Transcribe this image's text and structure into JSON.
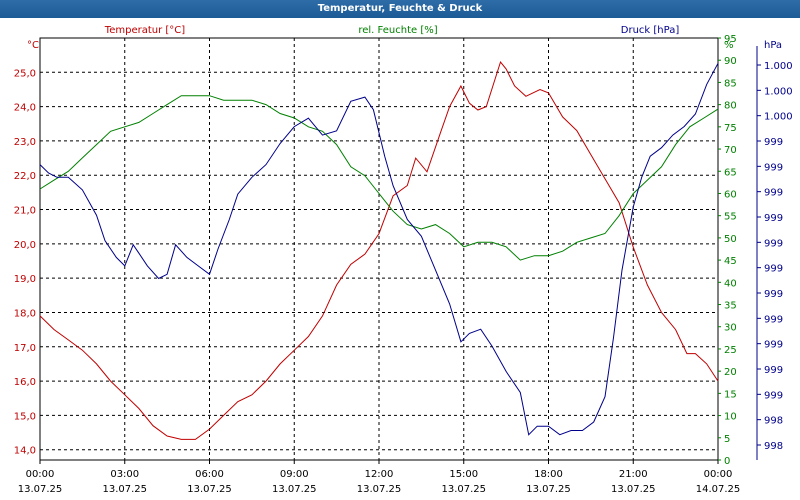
{
  "window": {
    "title": "Temperatur, Feuchte & Druck"
  },
  "colors": {
    "temperature": "#c00000",
    "humidity": "#008000",
    "pressure": "#00008b",
    "grid": "#000000"
  },
  "chart_data": {
    "type": "line",
    "title": "Temperatur, Feuchte & Druck",
    "grid": true,
    "x_ticks": [
      {
        "time": "00:00",
        "date": "13.07.25"
      },
      {
        "time": "03:00",
        "date": "13.07.25"
      },
      {
        "time": "06:00",
        "date": "13.07.25"
      },
      {
        "time": "09:00",
        "date": "13.07.25"
      },
      {
        "time": "12:00",
        "date": "13.07.25"
      },
      {
        "time": "15:00",
        "date": "13.07.25"
      },
      {
        "time": "18:00",
        "date": "13.07.25"
      },
      {
        "time": "21:00",
        "date": "13.07.25"
      },
      {
        "time": "00:00",
        "date": "14.07.25"
      }
    ],
    "axes": {
      "temperature": {
        "label": "Temperatur [°C]",
        "unit": "°C",
        "ylim": [
          13.7,
          26.0
        ],
        "ticks": [
          "25,0",
          "24,0",
          "23,0",
          "22,0",
          "21,0",
          "20,0",
          "19,0",
          "18,0",
          "17,0",
          "16,0",
          "15,0",
          "14,0"
        ]
      },
      "humidity": {
        "label": "rel. Feuchte [%]",
        "unit": "%",
        "ylim": [
          0,
          95
        ],
        "ticks": [
          "95",
          "90",
          "85",
          "80",
          "75",
          "70",
          "65",
          "60",
          "55",
          "50",
          "45",
          "40",
          "35",
          "30",
          "25",
          "20",
          "15",
          "10",
          "5",
          "0"
        ]
      },
      "pressure": {
        "label": "Druck [hPa]",
        "unit": "hPa",
        "ticks": [
          "1.000",
          "1.000",
          "1.000",
          "999",
          "999",
          "999",
          "999",
          "999",
          "999",
          "999",
          "999",
          "999",
          "999",
          "999",
          "998",
          "998"
        ]
      }
    },
    "series": [
      {
        "name": "Temperatur [°C]",
        "axis": "temperature",
        "points": [
          [
            0.0,
            17.9
          ],
          [
            0.5,
            17.5
          ],
          [
            1.0,
            17.2
          ],
          [
            1.5,
            16.9
          ],
          [
            2.0,
            16.5
          ],
          [
            2.5,
            16.0
          ],
          [
            3.0,
            15.6
          ],
          [
            3.5,
            15.2
          ],
          [
            4.0,
            14.7
          ],
          [
            4.5,
            14.4
          ],
          [
            5.0,
            14.3
          ],
          [
            5.5,
            14.3
          ],
          [
            6.0,
            14.6
          ],
          [
            6.5,
            15.0
          ],
          [
            7.0,
            15.4
          ],
          [
            7.5,
            15.6
          ],
          [
            8.0,
            16.0
          ],
          [
            8.5,
            16.5
          ],
          [
            9.0,
            16.9
          ],
          [
            9.5,
            17.3
          ],
          [
            10.0,
            17.9
          ],
          [
            10.5,
            18.8
          ],
          [
            11.0,
            19.4
          ],
          [
            11.5,
            19.7
          ],
          [
            12.0,
            20.3
          ],
          [
            12.5,
            21.4
          ],
          [
            13.0,
            21.7
          ],
          [
            13.3,
            22.5
          ],
          [
            13.7,
            22.1
          ],
          [
            14.2,
            23.3
          ],
          [
            14.5,
            24.0
          ],
          [
            14.9,
            24.6
          ],
          [
            15.2,
            24.1
          ],
          [
            15.5,
            23.9
          ],
          [
            15.8,
            24.0
          ],
          [
            16.3,
            25.3
          ],
          [
            16.5,
            25.1
          ],
          [
            16.8,
            24.6
          ],
          [
            17.2,
            24.3
          ],
          [
            17.7,
            24.5
          ],
          [
            18.0,
            24.4
          ],
          [
            18.5,
            23.7
          ],
          [
            19.0,
            23.3
          ],
          [
            19.5,
            22.6
          ],
          [
            20.0,
            21.9
          ],
          [
            20.5,
            21.2
          ],
          [
            21.0,
            19.9
          ],
          [
            21.5,
            18.8
          ],
          [
            22.0,
            18.0
          ],
          [
            22.5,
            17.5
          ],
          [
            22.9,
            16.8
          ],
          [
            23.2,
            16.8
          ],
          [
            23.6,
            16.5
          ],
          [
            24.0,
            16.0
          ]
        ]
      },
      {
        "name": "rel. Feuchte [%]",
        "axis": "humidity",
        "points": [
          [
            0.0,
            61
          ],
          [
            0.5,
            63
          ],
          [
            1.0,
            65
          ],
          [
            1.5,
            68
          ],
          [
            2.0,
            71
          ],
          [
            2.5,
            74
          ],
          [
            3.0,
            75
          ],
          [
            3.5,
            76
          ],
          [
            4.0,
            78
          ],
          [
            4.5,
            80
          ],
          [
            5.0,
            82
          ],
          [
            5.5,
            82
          ],
          [
            6.0,
            82
          ],
          [
            6.5,
            81
          ],
          [
            7.0,
            81
          ],
          [
            7.5,
            81
          ],
          [
            8.0,
            80
          ],
          [
            8.5,
            78
          ],
          [
            9.0,
            77
          ],
          [
            9.5,
            75
          ],
          [
            10.0,
            74
          ],
          [
            10.5,
            71
          ],
          [
            11.0,
            66
          ],
          [
            11.5,
            64
          ],
          [
            12.0,
            60
          ],
          [
            12.5,
            56
          ],
          [
            13.0,
            53
          ],
          [
            13.5,
            52
          ],
          [
            14.0,
            53
          ],
          [
            14.5,
            51
          ],
          [
            15.0,
            48
          ],
          [
            15.5,
            49
          ],
          [
            16.0,
            49
          ],
          [
            16.5,
            48
          ],
          [
            17.0,
            45
          ],
          [
            17.5,
            46
          ],
          [
            18.0,
            46
          ],
          [
            18.5,
            47
          ],
          [
            19.0,
            49
          ],
          [
            19.5,
            50
          ],
          [
            20.0,
            51
          ],
          [
            20.5,
            55
          ],
          [
            21.0,
            60
          ],
          [
            21.5,
            63
          ],
          [
            22.0,
            66
          ],
          [
            22.5,
            71
          ],
          [
            23.0,
            75
          ],
          [
            23.5,
            77
          ],
          [
            24.0,
            79
          ]
        ]
      },
      {
        "name": "Druck [hPa]",
        "axis": "pressure",
        "points": [
          [
            0.0,
            70
          ],
          [
            0.3,
            68
          ],
          [
            0.6,
            67
          ],
          [
            1.0,
            67
          ],
          [
            1.5,
            64
          ],
          [
            2.0,
            58
          ],
          [
            2.3,
            52
          ],
          [
            2.7,
            48
          ],
          [
            3.0,
            46
          ],
          [
            3.3,
            51
          ],
          [
            3.5,
            49
          ],
          [
            3.8,
            46
          ],
          [
            4.2,
            43
          ],
          [
            4.5,
            44
          ],
          [
            4.8,
            51
          ],
          [
            5.2,
            48
          ],
          [
            5.6,
            46
          ],
          [
            6.0,
            44
          ],
          [
            6.3,
            50
          ],
          [
            6.7,
            57
          ],
          [
            7.0,
            63
          ],
          [
            7.5,
            67
          ],
          [
            8.0,
            70
          ],
          [
            8.5,
            75
          ],
          [
            9.0,
            79
          ],
          [
            9.5,
            81
          ],
          [
            10.0,
            77
          ],
          [
            10.5,
            78
          ],
          [
            11.0,
            85
          ],
          [
            11.5,
            86
          ],
          [
            11.8,
            83
          ],
          [
            12.2,
            72
          ],
          [
            12.5,
            65
          ],
          [
            13.0,
            57
          ],
          [
            13.5,
            53
          ],
          [
            14.0,
            45
          ],
          [
            14.5,
            37
          ],
          [
            14.9,
            28
          ],
          [
            15.2,
            30
          ],
          [
            15.6,
            31
          ],
          [
            16.0,
            27
          ],
          [
            16.5,
            21
          ],
          [
            17.0,
            16
          ],
          [
            17.3,
            6
          ],
          [
            17.6,
            8
          ],
          [
            18.0,
            8
          ],
          [
            18.4,
            6
          ],
          [
            18.8,
            7
          ],
          [
            19.2,
            7
          ],
          [
            19.6,
            9
          ],
          [
            20.0,
            15
          ],
          [
            20.3,
            29
          ],
          [
            20.6,
            45
          ],
          [
            21.0,
            60
          ],
          [
            21.3,
            67
          ],
          [
            21.6,
            72
          ],
          [
            22.0,
            74
          ],
          [
            22.4,
            77
          ],
          [
            22.8,
            79
          ],
          [
            23.2,
            82
          ],
          [
            23.6,
            89
          ],
          [
            24.0,
            94
          ]
        ]
      }
    ]
  }
}
